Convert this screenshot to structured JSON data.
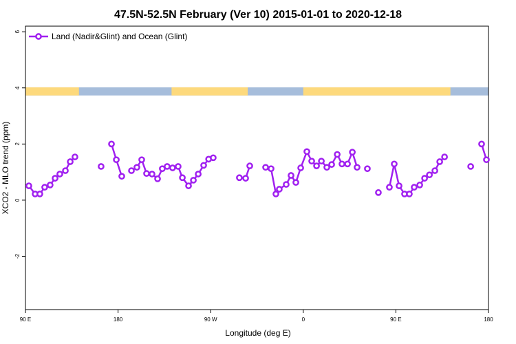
{
  "chart_data": {
    "type": "line",
    "title": "47.5N-52.5N February (Ver 10)   2015-01-01 to 2020-12-18",
    "xlabel": "Longitude (deg E)",
    "ylabel": "XCO2 - MLO trend (ppm)",
    "xlim": [
      90,
      540
    ],
    "ylim": [
      -3.9,
      6.2
    ],
    "xticks": [
      {
        "value": 90,
        "label": "90 E"
      },
      180,
      {
        "value": 270,
        "label": "90 W"
      },
      {
        "value": 360,
        "label": "0"
      },
      {
        "value": 450,
        "label": "90 E"
      },
      {
        "value": 540,
        "label": "180"
      }
    ],
    "yticks": [
      -2,
      0,
      2,
      4,
      6
    ],
    "legend": "topleft",
    "surface_band": {
      "ylim": [
        3.73,
        4.02
      ],
      "ocean_color": "#a6bddb",
      "land_color": "#fdd97c",
      "land": [
        [
          90,
          142
        ],
        [
          232,
          306
        ],
        [
          360,
          503
        ]
      ]
    },
    "series": [
      {
        "name": "Land (Nadir&Glint) and Ocean (Glint)",
        "color": "#a020f0",
        "x": [
          93.3,
          99.4,
          104,
          108.7,
          114,
          118.8,
          123.4,
          128.8,
          133.5,
          138.1,
          null,
          163.5,
          null,
          173.6,
          178.3,
          183.6,
          null,
          193,
          198.3,
          203,
          207.7,
          213,
          218.4,
          223,
          227.7,
          233,
          238.4,
          242.5,
          248.5,
          253.2,
          257.9,
          263.2,
          268,
          272.5,
          null,
          297.9,
          304,
          308,
          null,
          323.4,
          328.7,
          333.4,
          336.7,
          343.4,
          348.1,
          352.8,
          357.5,
          363.5,
          368.2,
          372.9,
          377.6,
          382.9,
          387.6,
          393,
          397.6,
          403,
          407.7,
          412.3,
          null,
          422.3,
          null,
          433,
          null,
          443.7,
          448.4,
          453.1,
          458.4,
          463.1,
          467.8,
          473.2,
          477.9,
          482.6,
          487.9,
          492.6,
          497.3,
          null,
          522.7,
          null,
          533.3,
          538
        ],
        "values": [
          0.51,
          0.22,
          0.22,
          0.46,
          0.54,
          0.78,
          0.93,
          1.05,
          1.37,
          1.54,
          null,
          1.2,
          null,
          2.0,
          1.44,
          0.85,
          null,
          1.05,
          1.17,
          1.44,
          0.95,
          0.93,
          0.76,
          1.12,
          1.2,
          1.15,
          1.2,
          0.8,
          0.51,
          0.71,
          0.93,
          1.24,
          1.46,
          1.51,
          null,
          0.8,
          0.78,
          1.22,
          null,
          1.17,
          1.12,
          0.22,
          0.39,
          0.56,
          0.88,
          0.63,
          1.15,
          1.73,
          1.39,
          1.22,
          1.39,
          1.17,
          1.27,
          1.63,
          1.29,
          1.29,
          1.71,
          1.17,
          null,
          1.12,
          null,
          0.27,
          null,
          0.46,
          1.29,
          0.51,
          0.22,
          0.22,
          0.46,
          0.54,
          0.78,
          0.9,
          1.05,
          1.37,
          1.54,
          null,
          1.2,
          null,
          2.0,
          1.44
        ]
      }
    ]
  }
}
